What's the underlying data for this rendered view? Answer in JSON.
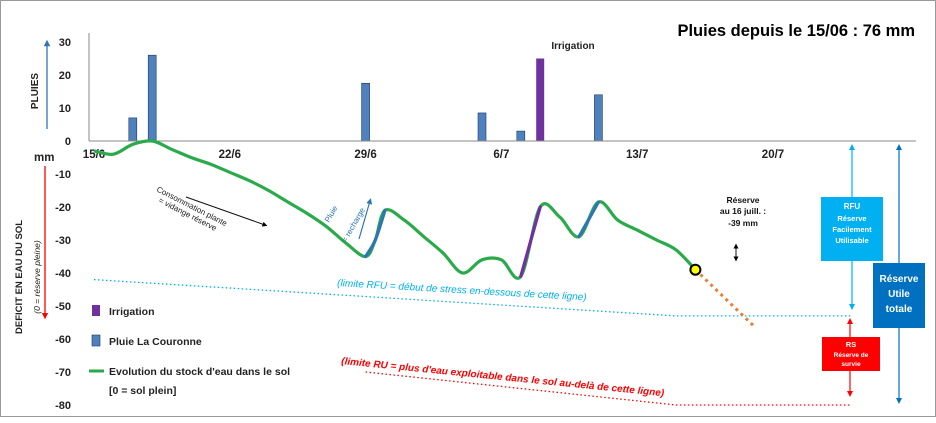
{
  "chart_data": [
    {
      "type": "bar",
      "ylabel": "PLUIES",
      "ylim": [
        0,
        35
      ],
      "yticks": [
        0,
        10,
        20,
        30
      ],
      "x_dates": [
        "15/6",
        "22/6",
        "29/6",
        "6/7",
        "13/7",
        "20/7"
      ],
      "series": [
        {
          "name": "Pluie La Couronne",
          "color": "#4f81bd",
          "points": [
            {
              "date": "2017-06-17",
              "value": 7
            },
            {
              "date": "2017-06-18",
              "value": 26
            },
            {
              "date": "2017-06-29",
              "value": 17.5
            },
            {
              "date": "2017-07-05",
              "value": 8.5
            },
            {
              "date": "2017-07-07",
              "value": 3
            },
            {
              "date": "2017-07-11",
              "value": 14
            }
          ]
        },
        {
          "name": "Irrigation",
          "color": "#7030a0",
          "points": [
            {
              "date": "2017-07-08",
              "value": 25
            }
          ]
        }
      ],
      "bar_label": "Irrigation",
      "title": "Pluies depuis le 15/06 : 76 mm"
    },
    {
      "type": "line",
      "unit_label": "mm",
      "ylabel": "DEFICIT EN EAU DU SOL",
      "ylabel_sub": "(0 = réserve pleine)",
      "ylim": [
        -80,
        0
      ],
      "yticks": [
        0,
        -10,
        -20,
        -30,
        -40,
        -50,
        -60,
        -70,
        -80
      ],
      "x_dates": [
        "15/6",
        "22/6",
        "29/6",
        "6/7",
        "13/7",
        "20/7"
      ],
      "series": [
        {
          "name": "Evolution du stock d'eau dans le sol [0 = sol plein]",
          "color": "#2aaa4a",
          "points": [
            {
              "date": "2017-06-15",
              "value": -3
            },
            {
              "date": "2017-06-16",
              "value": -4
            },
            {
              "date": "2017-06-17",
              "value": -1
            },
            {
              "date": "2017-06-18",
              "value": 0
            },
            {
              "date": "2017-06-19",
              "value": -2.5
            },
            {
              "date": "2017-06-20",
              "value": -5
            },
            {
              "date": "2017-06-21",
              "value": -7
            },
            {
              "date": "2017-06-22",
              "value": -9.5
            },
            {
              "date": "2017-06-23",
              "value": -12
            },
            {
              "date": "2017-06-24",
              "value": -15
            },
            {
              "date": "2017-06-25",
              "value": -18.5
            },
            {
              "date": "2017-06-26",
              "value": -22
            },
            {
              "date": "2017-06-27",
              "value": -26
            },
            {
              "date": "2017-06-28",
              "value": -31
            },
            {
              "date": "2017-06-29",
              "value": -35
            },
            {
              "date": "2017-06-29T12:00",
              "value": -30
            },
            {
              "date": "2017-06-30",
              "value": -21
            },
            {
              "date": "2017-07-01",
              "value": -24
            },
            {
              "date": "2017-07-02",
              "value": -29
            },
            {
              "date": "2017-07-03",
              "value": -34
            },
            {
              "date": "2017-07-04",
              "value": -40
            },
            {
              "date": "2017-07-05",
              "value": -36
            },
            {
              "date": "2017-07-06",
              "value": -36
            },
            {
              "date": "2017-07-07",
              "value": -41
            },
            {
              "date": "2017-07-08",
              "value": -20
            },
            {
              "date": "2017-07-09",
              "value": -23
            },
            {
              "date": "2017-07-10",
              "value": -29
            },
            {
              "date": "2017-07-11",
              "value": -18.5
            },
            {
              "date": "2017-07-12",
              "value": -24
            },
            {
              "date": "2017-07-13",
              "value": -27
            },
            {
              "date": "2017-07-14",
              "value": -30
            },
            {
              "date": "2017-07-15",
              "value": -33
            },
            {
              "date": "2017-07-16",
              "value": -39
            }
          ],
          "recharge_segments": [
            {
              "from": "2017-06-29",
              "to": "2017-06-30",
              "color": "#2e75b6"
            },
            {
              "from": "2017-07-07",
              "to": "2017-07-08",
              "color": "#7030a0"
            },
            {
              "from": "2017-07-10",
              "to": "2017-07-11",
              "color": "#2e75b6"
            }
          ],
          "forecast": {
            "color": "#ed7d31",
            "points": [
              {
                "date": "2017-07-16",
                "value": -39
              },
              {
                "date": "2017-07-19",
                "value": -56
              }
            ]
          }
        },
        {
          "name": "limite RFU",
          "color": "#00b0f0",
          "style": "dotted",
          "points": [
            {
              "date": "2017-06-15",
              "value": -42
            },
            {
              "date": "2017-07-15",
              "value": -53
            },
            {
              "date": "2017-07-24",
              "value": -53
            }
          ]
        },
        {
          "name": "limite RU",
          "color": "#ff0000",
          "style": "dotted",
          "points": [
            {
              "date": "2017-06-29",
              "value": -70
            },
            {
              "date": "2017-07-15",
              "value": -80
            },
            {
              "date": "2017-07-24",
              "value": -80
            }
          ]
        }
      ],
      "marker": {
        "date": "2017-07-16",
        "value": -39,
        "label": "Réserve au 16 juill. : -39 mm"
      }
    }
  ],
  "annotations": {
    "consommation": "Consommation plante = vidange réserve",
    "pluie_recharge": "Pluie = recharge",
    "limite_rfu": "(limite RFU = début de stress en-dessous de cette ligne)",
    "limite_ru": "(limite RU = plus d'eau exploitable dans le sol au-delà de cette ligne)",
    "reserve_line1": "Réserve",
    "reserve_line2": "au 16 juill. :",
    "reserve_line3": "-39 mm"
  },
  "boxes": {
    "rfu": {
      "title": "RFU",
      "lines": [
        "Réserve",
        "Facilement",
        "Utilisable"
      ],
      "color": "#00b0f0"
    },
    "rs": {
      "title": "RS",
      "lines": [
        "Réserve de",
        "survie"
      ],
      "color": "#ff0000"
    },
    "total": {
      "lines": [
        "Réserve",
        "Utile",
        "totale"
      ],
      "color": "#0070c0"
    }
  },
  "legend": [
    {
      "label": "Irrigation",
      "color": "#7030a0",
      "kind": "box"
    },
    {
      "label": "Pluie La Couronne",
      "color": "#4f81bd",
      "kind": "box"
    },
    {
      "label": "Evolution du stock d'eau dans le sol",
      "label2": "[0 = sol plein]",
      "color": "#2aaa4a",
      "kind": "line"
    }
  ]
}
